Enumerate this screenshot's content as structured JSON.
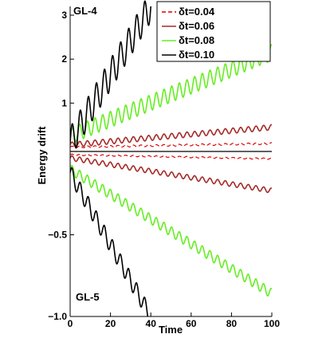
{
  "chart_data": {
    "type": "line",
    "xlabel": "Time",
    "ylabel": "Energy drift",
    "grid": false,
    "legend_position": "top-right",
    "panels": [
      {
        "id": "top",
        "label": "GL-4",
        "xlim": [
          0,
          100
        ],
        "ylim": [
          -0.1,
          3.2
        ],
        "yticks": [
          {
            "v": 1,
            "t": "1"
          },
          {
            "v": 2,
            "t": "2"
          },
          {
            "v": 3,
            "t": "3"
          }
        ],
        "series": [
          {
            "name": "δt=0.04",
            "color": "#dd0000",
            "dash": "5,3",
            "width": 1.2,
            "osc": "dense",
            "points": [
              [
                0,
                0.0
              ],
              [
                100,
                0.08
              ]
            ],
            "amp": 0.02
          },
          {
            "name": "δt=0.06",
            "color": "#a52a2a",
            "dash": "",
            "width": 1.6,
            "osc": "dense",
            "points": [
              [
                0,
                0.05
              ],
              [
                100,
                0.45
              ]
            ],
            "amp": 0.06
          },
          {
            "name": "δt=0.08",
            "color": "#66ee22",
            "dash": "",
            "width": 1.6,
            "osc": "dense",
            "points": [
              [
                0,
                0.25
              ],
              [
                100,
                2.15
              ]
            ],
            "amp": 0.18
          },
          {
            "name": "δt=0.10",
            "color": "#000000",
            "dash": "",
            "width": 1.6,
            "osc": "sparse",
            "points": [
              [
                0,
                0.1
              ],
              [
                40,
                3.2
              ]
            ],
            "amp": 0.35
          }
        ]
      },
      {
        "id": "bottom",
        "label": "GL-5",
        "xlim": [
          0,
          100
        ],
        "ylim": [
          -1.0,
          0.01
        ],
        "yticks": [
          {
            "v": -1.0,
            "t": "−1.0"
          },
          {
            "v": -0.5,
            "t": "−0.5"
          }
        ],
        "series": [
          {
            "name": "δt=0.04",
            "color": "#dd0000",
            "dash": "5,3",
            "width": 1.2,
            "osc": "dense",
            "points": [
              [
                0,
                -0.01
              ],
              [
                100,
                -0.035
              ]
            ],
            "amp": 0.004
          },
          {
            "name": "δt=0.06",
            "color": "#a52a2a",
            "dash": "",
            "width": 1.6,
            "osc": "dense",
            "points": [
              [
                0,
                -0.03
              ],
              [
                100,
                -0.23
              ]
            ],
            "amp": 0.015
          },
          {
            "name": "δt=0.08",
            "color": "#66ee22",
            "dash": "",
            "width": 1.6,
            "osc": "dense",
            "points": [
              [
                0,
                -0.1
              ],
              [
                100,
                -0.86
              ]
            ],
            "amp": 0.03
          },
          {
            "name": "δt=0.10",
            "color": "#000000",
            "dash": "",
            "width": 1.6,
            "osc": "sparse",
            "points": [
              [
                0,
                -0.12
              ],
              [
                40,
                -1.0
              ]
            ],
            "amp": 0.05
          }
        ]
      }
    ],
    "xticks": [
      {
        "v": 0,
        "t": "0"
      },
      {
        "v": 20,
        "t": "20"
      },
      {
        "v": 40,
        "t": "40"
      },
      {
        "v": 60,
        "t": "60"
      },
      {
        "v": 80,
        "t": "80"
      },
      {
        "v": 100,
        "t": "100"
      }
    ],
    "legend": [
      {
        "name": "δt=0.04",
        "color": "#dd0000",
        "dash": "5,3"
      },
      {
        "name": "δt=0.06",
        "color": "#a52a2a",
        "dash": ""
      },
      {
        "name": "δt=0.08",
        "color": "#66ee22",
        "dash": ""
      },
      {
        "name": "δt=0.10",
        "color": "#000000",
        "dash": ""
      }
    ]
  }
}
